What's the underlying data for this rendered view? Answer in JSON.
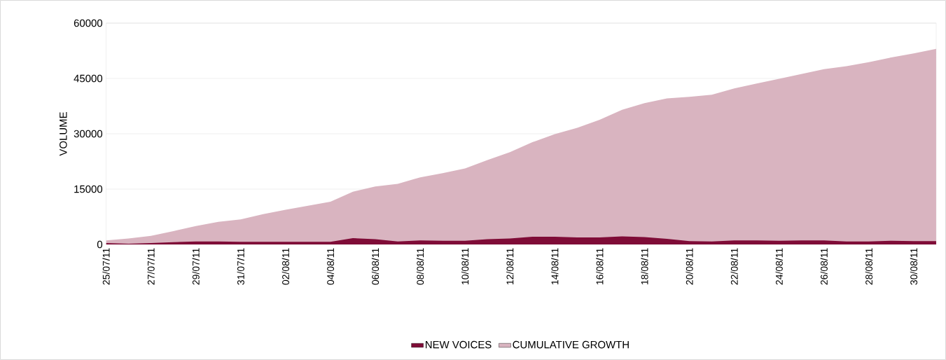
{
  "chart_data": {
    "type": "area",
    "categories": [
      "25/07/11",
      null,
      "27/07/11",
      null,
      "29/07/11",
      null,
      "31/07/11",
      null,
      "02/08/11",
      null,
      "04/08/11",
      null,
      "06/08/11",
      null,
      "08/08/11",
      null,
      "10/08/11",
      null,
      "12/08/11",
      null,
      "14/08/11",
      null,
      "16/08/11",
      null,
      "18/08/11",
      null,
      "20/08/11",
      null,
      "22/08/11",
      null,
      "24/08/11",
      null,
      "26/08/11",
      null,
      "28/08/11",
      null,
      "30/08/11",
      null
    ],
    "series": [
      {
        "name": "NEW VOICES",
        "color": "#7f0c37",
        "values": [
          400,
          200,
          400,
          600,
          800,
          800,
          700,
          700,
          700,
          700,
          700,
          1700,
          1400,
          800,
          1100,
          1000,
          1000,
          1400,
          1600,
          2100,
          2100,
          1900,
          1900,
          2200,
          2000,
          1500,
          900,
          800,
          1100,
          1100,
          1000,
          1100,
          1100,
          800,
          800,
          1000,
          900,
          900
        ]
      },
      {
        "name": "CUMULATIVE GROWTH",
        "color": "#d9b4c0",
        "values": [
          1100,
          1600,
          2300,
          3600,
          5000,
          6100,
          6800,
          8200,
          9400,
          10500,
          11600,
          14300,
          15700,
          16400,
          18200,
          19300,
          20600,
          22900,
          25000,
          27700,
          29900,
          31600,
          33800,
          36500,
          38300,
          39600,
          40000,
          40600,
          42300,
          43600,
          44900,
          46200,
          47500,
          48300,
          49400,
          50700,
          51800,
          53000
        ]
      }
    ],
    "ylabel": "VOLUME",
    "ylim": [
      0,
      60000
    ],
    "yticks": [
      0,
      15000,
      30000,
      45000,
      60000
    ],
    "grid": "y",
    "legend": "bottom"
  }
}
